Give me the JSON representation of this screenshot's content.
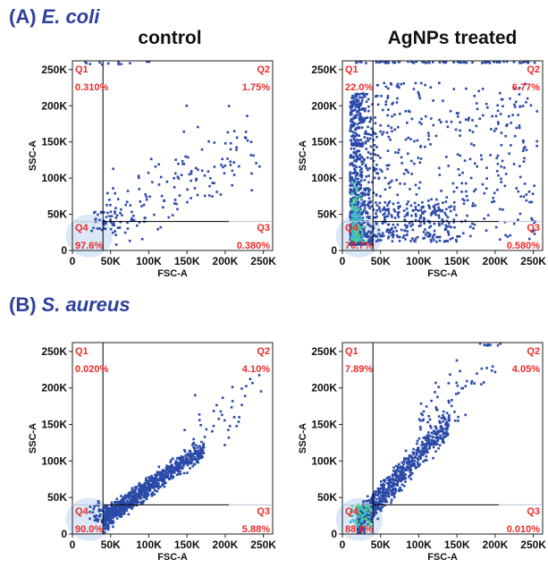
{
  "colors": {
    "title_blue": "#2e3f9e",
    "quadrant_red": "#ee2a2a",
    "dot_blue": "#2b4aa8",
    "gate_line": "#000000"
  },
  "sections": [
    {
      "label": "(A)",
      "organism": "E. coli"
    },
    {
      "label": "(B)",
      "organism": "S. aureus"
    }
  ],
  "columns": [
    "control",
    "AgNPs treated"
  ],
  "chart_data": [
    {
      "type": "scatter",
      "title": "control",
      "xlabel": "FSC-A",
      "ylabel": "SSC-A",
      "xlim": [
        0,
        262144
      ],
      "ylim": [
        0,
        262144
      ],
      "xticks": [
        0,
        50000,
        100000,
        150000,
        200000,
        250000
      ],
      "xtick_labels": [
        "0",
        "50K",
        "100K",
        "150K",
        "200K",
        "250K"
      ],
      "yticks": [
        0,
        50000,
        100000,
        150000,
        200000,
        250000
      ],
      "ytick_labels": [
        "0",
        "50K",
        "100K",
        "150K",
        "200K",
        "250K"
      ],
      "gate": {
        "x": 40000,
        "y": 40000
      },
      "quadrants": [
        {
          "name": "Q1",
          "percent": "0.310%"
        },
        {
          "name": "Q2",
          "percent": "1.75%"
        },
        {
          "name": "Q3",
          "percent": "0.380%"
        },
        {
          "name": "Q4",
          "percent": "97.6%"
        }
      ]
    },
    {
      "type": "scatter",
      "title": "AgNPs treated",
      "xlabel": "FSC-A",
      "ylabel": "SSC-A",
      "xlim": [
        0,
        262144
      ],
      "ylim": [
        0,
        262144
      ],
      "xticks": [
        0,
        50000,
        100000,
        150000,
        200000,
        250000
      ],
      "xtick_labels": [
        "0",
        "50K",
        "100K",
        "150K",
        "200K",
        "250K"
      ],
      "yticks": [
        0,
        50000,
        100000,
        150000,
        200000,
        250000
      ],
      "ytick_labels": [
        "0",
        "50K",
        "100K",
        "150K",
        "200K",
        "250K"
      ],
      "gate": {
        "x": 40000,
        "y": 40000
      },
      "quadrants": [
        {
          "name": "Q1",
          "percent": "22.0%"
        },
        {
          "name": "Q2",
          "percent": "6.77%"
        },
        {
          "name": "Q3",
          "percent": "0.580%"
        },
        {
          "name": "Q4",
          "percent": "70.7%"
        }
      ]
    },
    {
      "type": "scatter",
      "title": "",
      "xlabel": "FSC-A",
      "ylabel": "SSC-A",
      "xlim": [
        0,
        262144
      ],
      "ylim": [
        0,
        262144
      ],
      "xticks": [
        0,
        50000,
        100000,
        150000,
        200000,
        250000
      ],
      "xtick_labels": [
        "0",
        "50K",
        "100K",
        "150K",
        "200K",
        "250K"
      ],
      "yticks": [
        0,
        50000,
        100000,
        150000,
        200000,
        250000
      ],
      "ytick_labels": [
        "0",
        "50K",
        "100K",
        "150K",
        "200K",
        "250K"
      ],
      "gate": {
        "x": 40000,
        "y": 40000
      },
      "quadrants": [
        {
          "name": "Q1",
          "percent": "0.020%"
        },
        {
          "name": "Q2",
          "percent": "4.10%"
        },
        {
          "name": "Q3",
          "percent": "5.88%"
        },
        {
          "name": "Q4",
          "percent": "90.0%"
        }
      ]
    },
    {
      "type": "scatter",
      "title": "",
      "xlabel": "FSC-A",
      "ylabel": "SSC-A",
      "xlim": [
        0,
        262144
      ],
      "ylim": [
        0,
        262144
      ],
      "xticks": [
        0,
        50000,
        100000,
        150000,
        200000,
        250000
      ],
      "xtick_labels": [
        "0",
        "50K",
        "100K",
        "150K",
        "200K",
        "250K"
      ],
      "yticks": [
        0,
        50000,
        100000,
        150000,
        200000,
        250000
      ],
      "ytick_labels": [
        "0",
        "50K",
        "100K",
        "150K",
        "200K",
        "250K"
      ],
      "gate": {
        "x": 40000,
        "y": 40000
      },
      "quadrants": [
        {
          "name": "Q1",
          "percent": "7.89%"
        },
        {
          "name": "Q2",
          "percent": "4.05%"
        },
        {
          "name": "Q3",
          "percent": "0.010%"
        },
        {
          "name": "Q4",
          "percent": "88.0%"
        }
      ]
    }
  ]
}
